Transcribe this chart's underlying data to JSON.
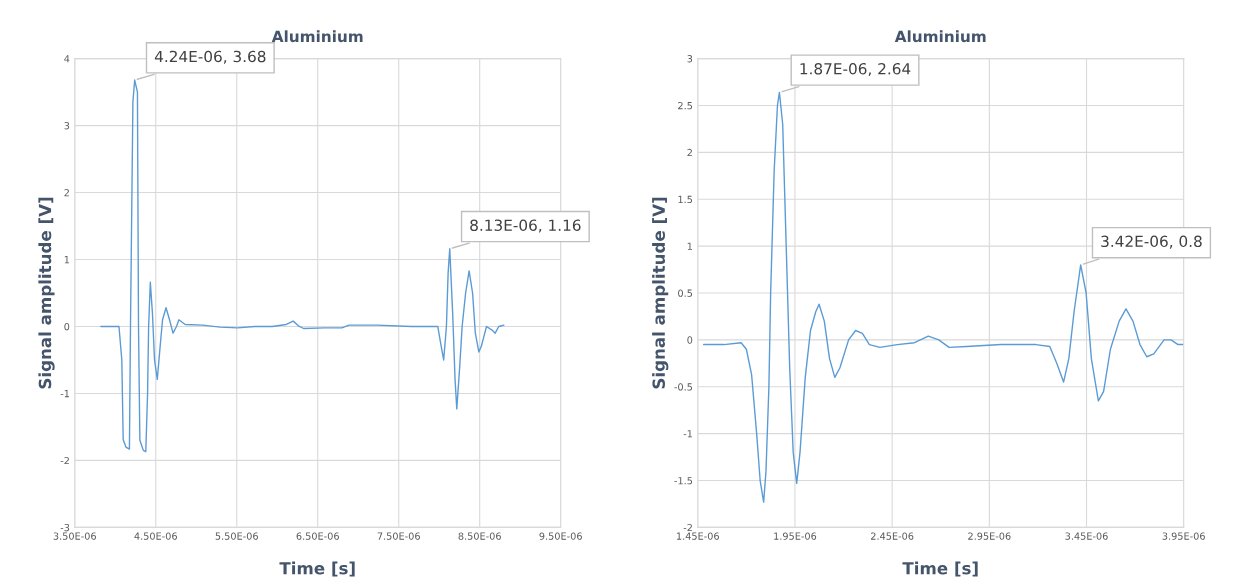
{
  "chart_data": [
    {
      "type": "line",
      "title": "Aluminium",
      "xlabel": "Time [s]",
      "ylabel": "Signal amplitude [V]",
      "x": [
        3.823e-06,
        4.046e-06,
        4.081e-06,
        4.098e-06,
        4.132e-06,
        4.175e-06,
        4.188e-06,
        4.218e-06,
        4.24e-06,
        4.274e-06,
        4.287e-06,
        4.304e-06,
        4.347e-06,
        4.377e-06,
        4.399e-06,
        4.412e-06,
        4.433e-06,
        4.459e-06,
        4.485e-06,
        4.519e-06,
        4.554e-06,
        4.584e-06,
        4.627e-06,
        4.67e-06,
        4.713e-06,
        4.756e-06,
        4.786e-06,
        4.863e-06,
        5.078e-06,
        5.294e-06,
        5.509e-06,
        5.724e-06,
        5.939e-06,
        6.111e-06,
        6.197e-06,
        6.261e-06,
        6.326e-06,
        6.584e-06,
        6.799e-06,
        6.885e-06,
        7.229e-06,
        7.659e-06,
        7.982e-06,
        8.025e-06,
        8.055e-06,
        8.089e-06,
        8.11e-06,
        8.13e-06,
        8.166e-06,
        8.196e-06,
        8.217e-06,
        8.253e-06,
        8.283e-06,
        8.326e-06,
        8.369e-06,
        8.412e-06,
        8.446e-06,
        8.489e-06,
        8.519e-06,
        8.584e-06,
        8.648e-06,
        8.691e-06,
        8.735e-06,
        8.799e-06
      ],
      "series": [
        {
          "color": "#5b9bd5",
          "values": [
            0,
            0,
            -0.5,
            -1.69,
            -1.8,
            -1.83,
            0,
            3.36,
            3.68,
            3.5,
            0,
            -1.7,
            -1.85,
            -1.87,
            -1.0,
            0,
            0.66,
            0.2,
            -0.5,
            -0.79,
            -0.3,
            0.1,
            0.28,
            0.1,
            -0.1,
            0,
            0.1,
            0.03,
            0.02,
            -0.01,
            -0.02,
            0,
            0,
            0.03,
            0.08,
            0.01,
            -0.03,
            -0.02,
            -0.02,
            0.02,
            0.02,
            0,
            0,
            -0.3,
            -0.5,
            0,
            0.8,
            1.16,
            0.2,
            -0.8,
            -1.23,
            -0.6,
            0,
            0.5,
            0.83,
            0.5,
            -0.1,
            -0.38,
            -0.3,
            0,
            -0.05,
            -0.1,
            0,
            0.02
          ]
        }
      ],
      "xlim": [
        3.5e-06,
        9.5e-06
      ],
      "xticks": [
        {
          "value": 3.5e-06,
          "label": "3.50E-06"
        },
        {
          "value": 4.5e-06,
          "label": "4.50E-06"
        },
        {
          "value": 5.5e-06,
          "label": "5.50E-06"
        },
        {
          "value": 6.5e-06,
          "label": "6.50E-06"
        },
        {
          "value": 7.5e-06,
          "label": "7.50E-06"
        },
        {
          "value": 8.5e-06,
          "label": "8.50E-06"
        },
        {
          "value": 9.5e-06,
          "label": "9.50E-06"
        }
      ],
      "ylim": [
        -3,
        4
      ],
      "yticks": [
        -3,
        -2,
        -1,
        0,
        1,
        2,
        3,
        4
      ],
      "grid": true,
      "annotations": [
        {
          "text": "4.24E-06, 3.68",
          "x": 4.24e-06,
          "y": 3.68
        },
        {
          "text": "8.13E-06, 1.16",
          "x": 8.13e-06,
          "y": 1.16
        }
      ]
    },
    {
      "type": "line",
      "title": "Aluminium",
      "xlabel": "Time [s]",
      "ylabel": "Signal amplitude [V]",
      "x": [
        1.48e-06,
        1.584e-06,
        1.673e-06,
        1.7e-06,
        1.727e-06,
        1.753e-06,
        1.771e-06,
        1.789e-06,
        1.801e-06,
        1.816e-06,
        1.825e-06,
        1.843e-06,
        1.86e-06,
        1.87e-06,
        1.887e-06,
        1.905e-06,
        1.923e-06,
        1.941e-06,
        1.959e-06,
        1.976e-06,
        2.003e-06,
        2.03e-06,
        2.057e-06,
        2.074e-06,
        2.101e-06,
        2.128e-06,
        2.155e-06,
        2.181e-06,
        2.226e-06,
        2.262e-06,
        2.297e-06,
        2.333e-06,
        2.387e-06,
        2.476e-06,
        2.565e-06,
        2.636e-06,
        2.69e-06,
        2.743e-06,
        2.833e-06,
        3.011e-06,
        3.19e-06,
        3.261e-06,
        3.297e-06,
        3.332e-06,
        3.359e-06,
        3.386e-06,
        3.42e-06,
        3.448e-06,
        3.475e-06,
        3.511e-06,
        3.538e-06,
        3.573e-06,
        3.618e-06,
        3.653e-06,
        3.689e-06,
        3.725e-06,
        3.76e-06,
        3.796e-06,
        3.849e-06,
        3.885e-06,
        3.921e-06,
        3.95e-06
      ],
      "series": [
        {
          "color": "#5b9bd5",
          "values": [
            -0.05,
            -0.05,
            -0.03,
            -0.1,
            -0.37,
            -1.0,
            -1.5,
            -1.73,
            -1.4,
            -0.5,
            0.5,
            1.8,
            2.5,
            2.64,
            2.3,
            1.0,
            -0.3,
            -1.2,
            -1.53,
            -1.2,
            -0.4,
            0.1,
            0.3,
            0.38,
            0.2,
            -0.2,
            -0.4,
            -0.3,
            0,
            0.1,
            0.07,
            -0.05,
            -0.08,
            -0.05,
            -0.03,
            0.04,
            0,
            -0.08,
            -0.07,
            -0.05,
            -0.05,
            -0.07,
            -0.25,
            -0.45,
            -0.2,
            0.3,
            0.8,
            0.5,
            -0.2,
            -0.65,
            -0.55,
            -0.1,
            0.2,
            0.33,
            0.2,
            -0.05,
            -0.18,
            -0.15,
            0,
            0,
            -0.05,
            -0.05
          ]
        }
      ],
      "xlim": [
        1.45e-06,
        3.95e-06
      ],
      "xticks": [
        {
          "value": 1.45e-06,
          "label": "1.45E-06"
        },
        {
          "value": 1.95e-06,
          "label": "1.95E-06"
        },
        {
          "value": 2.45e-06,
          "label": "2.45E-06"
        },
        {
          "value": 2.95e-06,
          "label": "2.95E-06"
        },
        {
          "value": 3.45e-06,
          "label": "3.45E-06"
        },
        {
          "value": 3.95e-06,
          "label": "3.95E-06"
        }
      ],
      "ylim": [
        -2,
        3
      ],
      "yticks": [
        -2,
        -1.5,
        -1,
        -0.5,
        0,
        0.5,
        1,
        1.5,
        2,
        2.5,
        3
      ],
      "grid": true,
      "annotations": [
        {
          "text": "1.87E-06, 2.64",
          "x": 1.87e-06,
          "y": 2.64
        },
        {
          "text": "3.42E-06, 0.8",
          "x": 3.42e-06,
          "y": 0.8
        }
      ]
    }
  ]
}
